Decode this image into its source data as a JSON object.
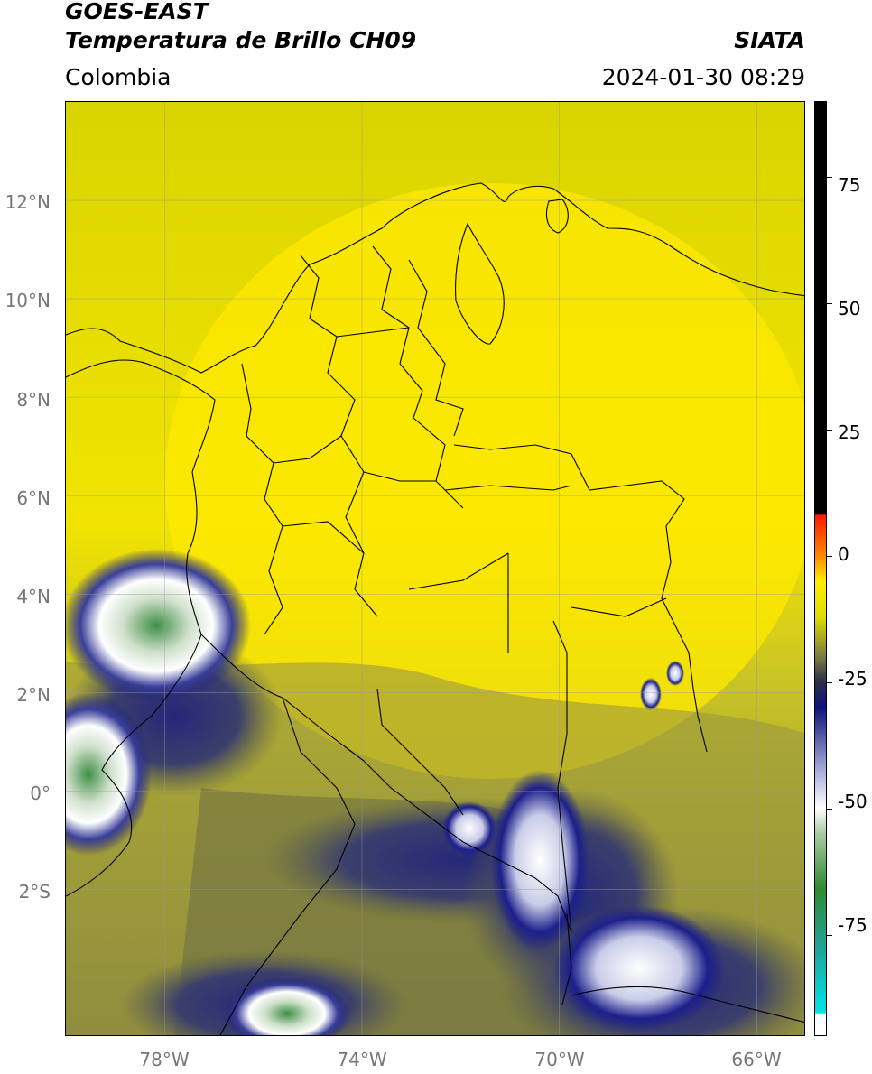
{
  "header": {
    "title_line1": "GOES-EAST",
    "title_line2": "Temperatura de Brillo CH09",
    "region": "Colombia",
    "organization": "SIATA",
    "datetime": "2024-01-30 08:29"
  },
  "map": {
    "lat_labels": [
      "12°N",
      "10°N",
      "8°N",
      "6°N",
      "4°N",
      "2°N",
      "0°",
      "2°S"
    ],
    "lon_labels": [
      "78°W",
      "74°W",
      "70°W",
      "66°W"
    ],
    "lat_values": [
      12,
      10,
      8,
      6,
      4,
      2,
      0,
      -2
    ],
    "lon_values": [
      -78,
      -74,
      -70,
      -66
    ],
    "lon_range": [
      -80,
      -65
    ],
    "lat_range": [
      -5,
      14
    ],
    "colors": {
      "background_field": "#e3e000",
      "warm_yellow": "#fde800",
      "olive": "#8c8a45",
      "dark_olive": "#5d5f4c",
      "navy": "#1c1f8a",
      "cloud_white": "#f4f6f8",
      "green": "#3e9a4a",
      "borders": "#000000",
      "gridlines": "#9a9a9a"
    }
  },
  "colorbar": {
    "range": [
      -95,
      90
    ],
    "ticks": [
      "75",
      "50",
      "25",
      "0",
      "-25",
      "-50",
      "-75"
    ],
    "tick_values": [
      75,
      50,
      25,
      0,
      -25,
      -50,
      -75
    ],
    "stops": [
      {
        "v": -95,
        "c": "#ffffff"
      },
      {
        "v": -91,
        "c": "#ffffff"
      },
      {
        "v": -90.5,
        "c": "#00e5e5"
      },
      {
        "v": -78,
        "c": "#1fa59a"
      },
      {
        "v": -66,
        "c": "#2f8b2f"
      },
      {
        "v": -55,
        "c": "#a9c9a3"
      },
      {
        "v": -50,
        "c": "#ffffff"
      },
      {
        "v": -40,
        "c": "#8a8fc8"
      },
      {
        "v": -30,
        "c": "#0f127a"
      },
      {
        "v": -25,
        "c": "#2c2c4a"
      },
      {
        "v": -20,
        "c": "#7a7a3f"
      },
      {
        "v": -12,
        "c": "#dede00"
      },
      {
        "v": -5,
        "c": "#ffee00"
      },
      {
        "v": 0,
        "c": "#ff8a00"
      },
      {
        "v": 8,
        "c": "#ff1a00"
      },
      {
        "v": 8.5,
        "c": "#000000"
      },
      {
        "v": 90,
        "c": "#000000"
      }
    ]
  }
}
